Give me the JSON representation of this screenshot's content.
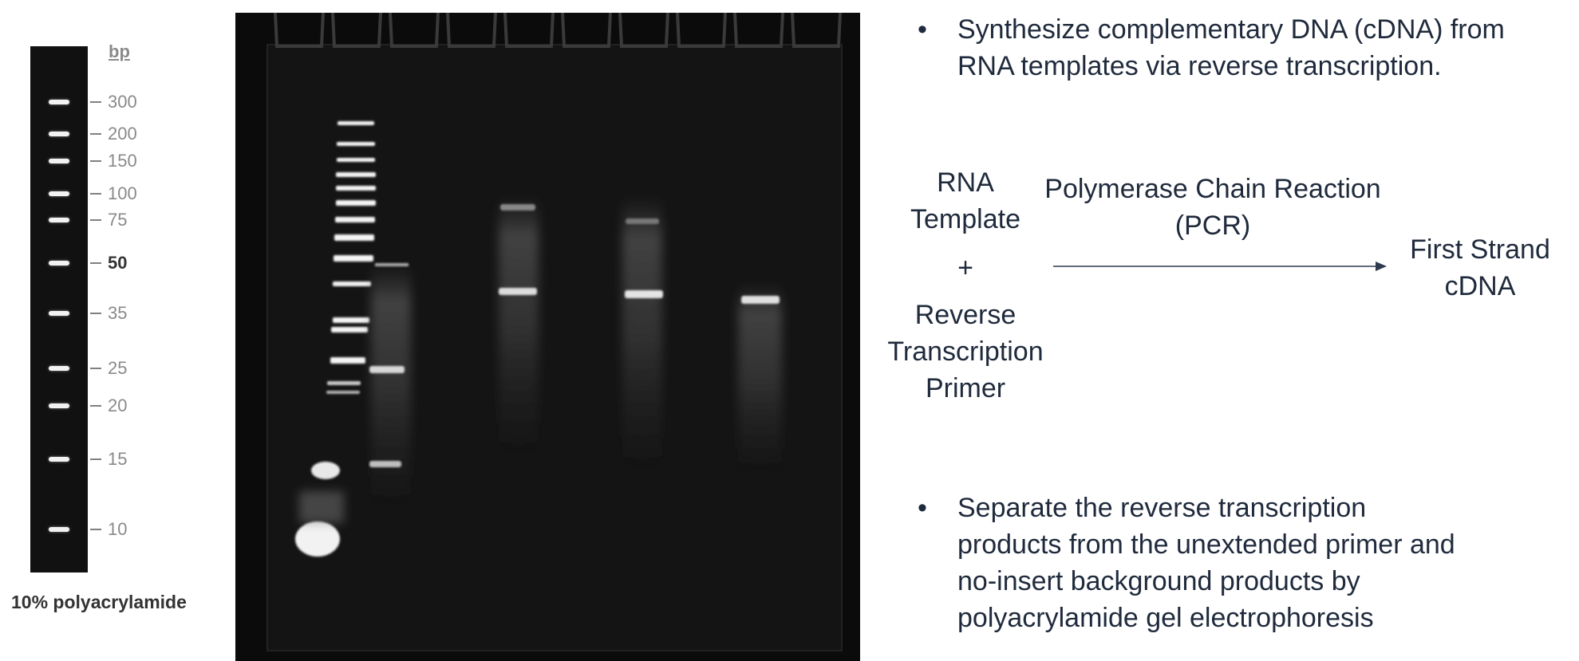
{
  "ladder": {
    "unit": "bp",
    "caption": "10% polyacrylamide",
    "bands": [
      {
        "label": "300",
        "bold": false
      },
      {
        "label": "200",
        "bold": false
      },
      {
        "label": "150",
        "bold": false
      },
      {
        "label": "100",
        "bold": false
      },
      {
        "label": "75",
        "bold": false
      },
      {
        "label": "50",
        "bold": true
      },
      {
        "label": "35",
        "bold": false
      },
      {
        "label": "25",
        "bold": false
      },
      {
        "label": "20",
        "bold": false
      },
      {
        "label": "15",
        "bold": false
      },
      {
        "label": "10",
        "bold": false
      }
    ]
  },
  "bullets": {
    "first": {
      "dot": "•",
      "lines": [
        "Synthesize complementary DNA (cDNA) from",
        "RNA templates via reverse transcription."
      ]
    },
    "second": {
      "dot": "•",
      "lines": [
        "Separate the reverse transcription",
        "products from the unextended primer and",
        "no-insert background products by",
        "polyacrylamide gel electrophoresis"
      ]
    }
  },
  "reaction": {
    "input1": [
      "RNA",
      "Template"
    ],
    "plus": "+",
    "input2": [
      "Reverse",
      "Transcription",
      "Primer"
    ],
    "process": [
      "Polymerase Chain Reaction",
      "(PCR)"
    ],
    "output": [
      "First Strand",
      "cDNA"
    ],
    "arrow_color": "#2e3a4e"
  }
}
